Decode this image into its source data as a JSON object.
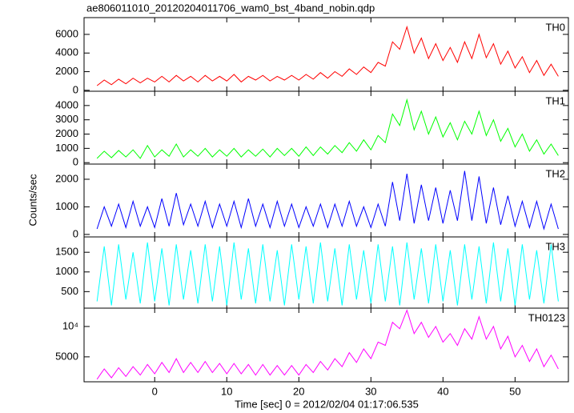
{
  "title": "ae806011010_20120204011706_wam0_bst_4band_nobin.qdp",
  "ylabel": "Counts/sec",
  "xlabel": "Time [sec] 0 = 2012/02/04 01:17:06.535",
  "chart_data": [
    {
      "type": "line",
      "xlim": [
        -9.8,
        57.4
      ],
      "xticks": [
        0,
        10,
        20,
        30,
        40,
        50
      ],
      "ylim": [
        -100,
        7800
      ],
      "yticks": [
        0,
        2000,
        4000,
        6000
      ],
      "x": [
        -8,
        -7,
        -6,
        -5,
        -4,
        -3,
        -2,
        -1,
        0,
        1,
        2,
        3,
        4,
        5,
        6,
        7,
        8,
        9,
        10,
        11,
        12,
        13,
        14,
        15,
        16,
        17,
        18,
        19,
        20,
        21,
        22,
        23,
        24,
        25,
        26,
        27,
        28,
        29,
        30,
        31,
        32,
        33,
        34,
        35,
        36,
        37,
        38,
        39,
        40,
        41,
        42,
        43,
        44,
        45,
        46,
        47,
        48,
        49,
        50,
        51,
        52,
        53,
        54,
        55,
        56
      ],
      "series": [
        {
          "name": "TH0",
          "color": "#ff0000",
          "values": [
            500,
            1100,
            600,
            1200,
            700,
            1300,
            800,
            1300,
            900,
            1500,
            900,
            1600,
            1000,
            1500,
            900,
            1600,
            1000,
            1500,
            1000,
            1700,
            900,
            1500,
            1100,
            1600,
            1000,
            1500,
            1100,
            1600,
            1100,
            1700,
            1200,
            1900,
            1300,
            2000,
            1500,
            2300,
            1700,
            2500,
            1900,
            3000,
            2600,
            5200,
            4400,
            6800,
            4000,
            5600,
            3400,
            5000,
            3200,
            4600,
            3000,
            5200,
            3400,
            6000,
            3500,
            5000,
            2800,
            4200,
            2400,
            3600,
            1900,
            3200,
            1600,
            2800,
            1500
          ]
        }
      ]
    },
    {
      "type": "line",
      "xlim": [
        -9.8,
        57.4
      ],
      "xticks": [
        0,
        10,
        20,
        30,
        40,
        50
      ],
      "ylim": [
        -100,
        5000
      ],
      "yticks": [
        0,
        1000,
        2000,
        3000,
        4000
      ],
      "x": [
        -8,
        -7,
        -6,
        -5,
        -4,
        -3,
        -2,
        -1,
        0,
        1,
        2,
        3,
        4,
        5,
        6,
        7,
        8,
        9,
        10,
        11,
        12,
        13,
        14,
        15,
        16,
        17,
        18,
        19,
        20,
        21,
        22,
        23,
        24,
        25,
        26,
        27,
        28,
        29,
        30,
        31,
        32,
        33,
        34,
        35,
        36,
        37,
        38,
        39,
        40,
        41,
        42,
        43,
        44,
        45,
        46,
        47,
        48,
        49,
        50,
        51,
        52,
        53,
        54,
        55,
        56
      ],
      "series": [
        {
          "name": "TH1",
          "color": "#00ff00",
          "values": [
            300,
            800,
            350,
            850,
            400,
            900,
            300,
            1200,
            400,
            900,
            450,
            1300,
            400,
            900,
            450,
            1000,
            400,
            900,
            450,
            1000,
            400,
            900,
            450,
            950,
            400,
            1000,
            500,
            1000,
            450,
            1100,
            500,
            1100,
            600,
            1200,
            700,
            1400,
            800,
            1600,
            900,
            1900,
            1400,
            3400,
            2600,
            4400,
            2300,
            3600,
            2000,
            3200,
            1800,
            2800,
            1600,
            2900,
            2000,
            3600,
            1900,
            3000,
            1500,
            2400,
            1100,
            2000,
            800,
            1600,
            600,
            1300,
            500
          ]
        }
      ]
    },
    {
      "type": "line",
      "xlim": [
        -9.8,
        57.4
      ],
      "xticks": [
        0,
        10,
        20,
        30,
        40,
        50
      ],
      "ylim": [
        -90,
        2550
      ],
      "yticks": [
        0,
        1000,
        2000
      ],
      "x": [
        -8,
        -7,
        -6,
        -5,
        -4,
        -3,
        -2,
        -1,
        0,
        1,
        2,
        3,
        4,
        5,
        6,
        7,
        8,
        9,
        10,
        11,
        12,
        13,
        14,
        15,
        16,
        17,
        18,
        19,
        20,
        21,
        22,
        23,
        24,
        25,
        26,
        27,
        28,
        29,
        30,
        31,
        32,
        33,
        34,
        35,
        36,
        37,
        38,
        39,
        40,
        41,
        42,
        43,
        44,
        45,
        46,
        47,
        48,
        49,
        50,
        51,
        52,
        53,
        54,
        55,
        56
      ],
      "series": [
        {
          "name": "TH2",
          "color": "#0000ff",
          "values": [
            200,
            1000,
            300,
            1100,
            250,
            1200,
            300,
            1000,
            250,
            1300,
            300,
            1500,
            350,
            1100,
            300,
            1200,
            250,
            1100,
            300,
            1200,
            250,
            1300,
            300,
            1100,
            250,
            1200,
            300,
            1100,
            250,
            1000,
            300,
            1100,
            250,
            1100,
            300,
            1200,
            300,
            1000,
            250,
            1100,
            300,
            1900,
            500,
            2200,
            400,
            1800,
            500,
            1700,
            400,
            1600,
            500,
            2300,
            500,
            2100,
            400,
            1700,
            350,
            1400,
            300,
            1200,
            250,
            1200,
            200,
            1100,
            200
          ]
        }
      ]
    },
    {
      "type": "line",
      "xlim": [
        -9.8,
        57.4
      ],
      "xticks": [
        0,
        10,
        20,
        30,
        40,
        50
      ],
      "ylim": [
        80,
        1890
      ],
      "yticks": [
        500,
        1000,
        1500
      ],
      "x": [
        -8,
        -7,
        -6,
        -5,
        -4,
        -3,
        -2,
        -1,
        0,
        1,
        2,
        3,
        4,
        5,
        6,
        7,
        8,
        9,
        10,
        11,
        12,
        13,
        14,
        15,
        16,
        17,
        18,
        19,
        20,
        21,
        22,
        23,
        24,
        25,
        26,
        27,
        28,
        29,
        30,
        31,
        32,
        33,
        34,
        35,
        36,
        37,
        38,
        39,
        40,
        41,
        42,
        43,
        44,
        45,
        46,
        47,
        48,
        49,
        50,
        51,
        52,
        53,
        54,
        55,
        56
      ],
      "series": [
        {
          "name": "TH3",
          "color": "#00ffff",
          "values": [
            250,
            1650,
            150,
            1700,
            300,
            1500,
            200,
            1750,
            250,
            1600,
            150,
            1700,
            300,
            1550,
            200,
            1700,
            250,
            1650,
            150,
            1750,
            300,
            1600,
            200,
            1700,
            250,
            1550,
            150,
            1700,
            300,
            1650,
            200,
            1750,
            250,
            1600,
            150,
            1700,
            300,
            1550,
            200,
            1700,
            250,
            1650,
            150,
            1750,
            300,
            1600,
            200,
            1700,
            250,
            1550,
            150,
            1700,
            300,
            1650,
            200,
            1750,
            250,
            1600,
            150,
            1700,
            300,
            1550,
            200,
            1700,
            250
          ]
        }
      ]
    },
    {
      "type": "line",
      "xlim": [
        -9.8,
        57.4
      ],
      "xticks": [
        0,
        10,
        20,
        30,
        40,
        50
      ],
      "ylim": [
        2830,
        15200
      ],
      "ylog": true,
      "yticks": [
        5000,
        {
          "value": 10000,
          "label": "10⁴"
        }
      ],
      "x": [
        -8,
        -7,
        -6,
        -5,
        -4,
        -3,
        -2,
        -1,
        0,
        1,
        2,
        3,
        4,
        5,
        6,
        7,
        8,
        9,
        10,
        11,
        12,
        13,
        14,
        15,
        16,
        17,
        18,
        19,
        20,
        21,
        22,
        23,
        24,
        25,
        26,
        27,
        28,
        29,
        30,
        31,
        32,
        33,
        34,
        35,
        36,
        37,
        38,
        39,
        40,
        41,
        42,
        43,
        44,
        45,
        46,
        47,
        48,
        49,
        50,
        51,
        52,
        53,
        54,
        55,
        56
      ],
      "series": [
        {
          "name": "TH0123",
          "color": "#ff00ff",
          "values": [
            3000,
            3800,
            3100,
            3900,
            3200,
            4000,
            3300,
            4200,
            3400,
            4400,
            3500,
            4800,
            3500,
            4400,
            3500,
            4500,
            3500,
            4300,
            3400,
            4300,
            3400,
            4200,
            3300,
            4200,
            3300,
            4100,
            3300,
            4100,
            3300,
            4200,
            3500,
            4500,
            3700,
            4800,
            4000,
            5500,
            4400,
            6000,
            4800,
            7000,
            6500,
            11000,
            9500,
            14500,
            8500,
            11000,
            7800,
            10000,
            7000,
            8500,
            6500,
            9500,
            7500,
            12500,
            7500,
            10000,
            6000,
            8000,
            5000,
            6500,
            4500,
            6000,
            4000,
            5200,
            3800
          ]
        }
      ]
    }
  ]
}
